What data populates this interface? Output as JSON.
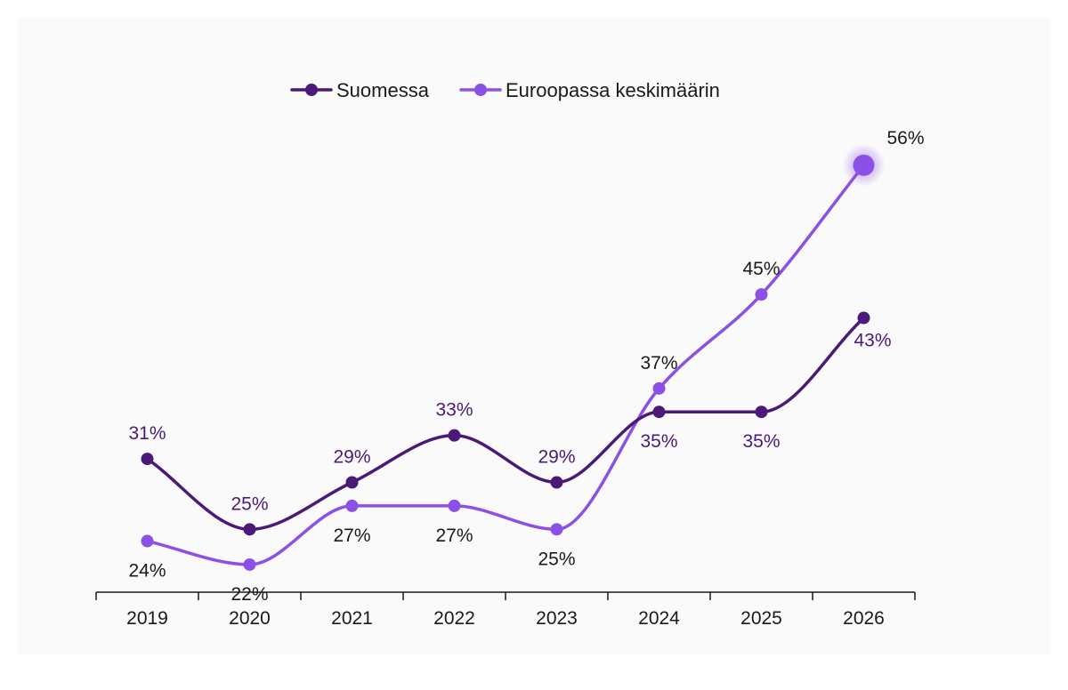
{
  "chart_data": {
    "type": "line",
    "categories": [
      "2019",
      "2020",
      "2021",
      "2022",
      "2023",
      "2024",
      "2025",
      "2026"
    ],
    "series": [
      {
        "name": "Suomessa",
        "values": [
          31,
          25,
          29,
          33,
          29,
          35,
          35,
          43
        ],
        "labels": [
          "31%",
          "25%",
          "29%",
          "33%",
          "29%",
          "35%",
          "35%",
          "43%"
        ],
        "color": "#4b1978",
        "label_color": "#4b1978"
      },
      {
        "name": "Euroopassa keskimäärin",
        "values": [
          24,
          22,
          27,
          27,
          25,
          37,
          45,
          56
        ],
        "labels": [
          "24%",
          "22%",
          "27%",
          "27%",
          "25%",
          "37%",
          "45%",
          "56%"
        ],
        "color": "#8c50e6",
        "label_color": "#1a1a1a"
      }
    ],
    "highlight": {
      "series": "Euroopassa keskimäärin",
      "category": "2026"
    },
    "legend_position": "top-center",
    "grid": false,
    "ylim": [
      17,
      60
    ]
  }
}
